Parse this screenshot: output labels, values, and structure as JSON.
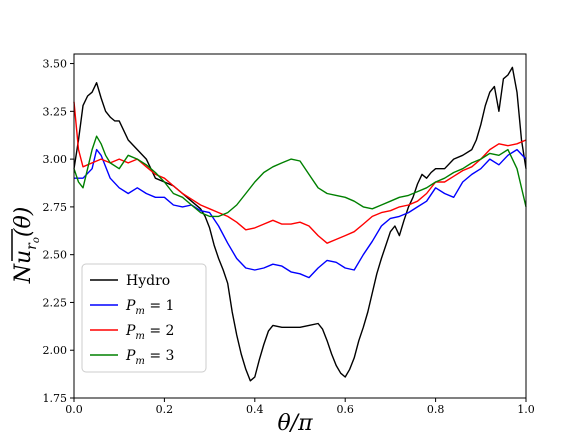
{
  "chart_data": {
    "type": "line",
    "xlabel": "θ/π",
    "ylabel": "Nu_{r_o}(θ)",
    "xlim": [
      0,
      1
    ],
    "ylim": [
      1.75,
      3.55
    ],
    "xticks": [
      0.0,
      0.2,
      0.4,
      0.6,
      0.8,
      1.0
    ],
    "xtick_labels": [
      "0.0",
      "0.2",
      "0.4",
      "0.6",
      "0.8",
      "1.0"
    ],
    "yticks": [
      1.75,
      2.0,
      2.25,
      2.5,
      2.75,
      3.0,
      3.25,
      3.5
    ],
    "ytick_labels": [
      "1.75",
      "2.00",
      "2.25",
      "2.50",
      "2.75",
      "3.00",
      "3.25",
      "3.50"
    ],
    "grid": false,
    "legend_position": "lower-left",
    "series": [
      {
        "name": "Hydro",
        "color": "#000000",
        "points": [
          [
            0.0,
            2.95
          ],
          [
            0.01,
            3.1
          ],
          [
            0.02,
            3.28
          ],
          [
            0.03,
            3.33
          ],
          [
            0.04,
            3.35
          ],
          [
            0.05,
            3.4
          ],
          [
            0.06,
            3.32
          ],
          [
            0.07,
            3.25
          ],
          [
            0.08,
            3.22
          ],
          [
            0.09,
            3.2
          ],
          [
            0.1,
            3.2
          ],
          [
            0.12,
            3.1
          ],
          [
            0.14,
            3.05
          ],
          [
            0.16,
            3.0
          ],
          [
            0.18,
            2.9
          ],
          [
            0.2,
            2.88
          ],
          [
            0.22,
            2.86
          ],
          [
            0.24,
            2.82
          ],
          [
            0.26,
            2.78
          ],
          [
            0.28,
            2.74
          ],
          [
            0.29,
            2.7
          ],
          [
            0.3,
            2.64
          ],
          [
            0.31,
            2.55
          ],
          [
            0.32,
            2.48
          ],
          [
            0.33,
            2.42
          ],
          [
            0.34,
            2.35
          ],
          [
            0.35,
            2.2
          ],
          [
            0.36,
            2.08
          ],
          [
            0.37,
            1.98
          ],
          [
            0.38,
            1.9
          ],
          [
            0.39,
            1.84
          ],
          [
            0.4,
            1.86
          ],
          [
            0.41,
            1.95
          ],
          [
            0.42,
            2.03
          ],
          [
            0.43,
            2.1
          ],
          [
            0.44,
            2.13
          ],
          [
            0.46,
            2.12
          ],
          [
            0.48,
            2.12
          ],
          [
            0.5,
            2.12
          ],
          [
            0.52,
            2.13
          ],
          [
            0.54,
            2.14
          ],
          [
            0.55,
            2.11
          ],
          [
            0.56,
            2.05
          ],
          [
            0.57,
            1.98
          ],
          [
            0.58,
            1.92
          ],
          [
            0.59,
            1.88
          ],
          [
            0.6,
            1.86
          ],
          [
            0.61,
            1.9
          ],
          [
            0.62,
            1.96
          ],
          [
            0.63,
            2.05
          ],
          [
            0.64,
            2.12
          ],
          [
            0.65,
            2.2
          ],
          [
            0.66,
            2.3
          ],
          [
            0.67,
            2.4
          ],
          [
            0.68,
            2.48
          ],
          [
            0.69,
            2.55
          ],
          [
            0.7,
            2.62
          ],
          [
            0.71,
            2.65
          ],
          [
            0.72,
            2.6
          ],
          [
            0.73,
            2.68
          ],
          [
            0.74,
            2.75
          ],
          [
            0.75,
            2.8
          ],
          [
            0.76,
            2.87
          ],
          [
            0.77,
            2.92
          ],
          [
            0.78,
            2.9
          ],
          [
            0.79,
            2.93
          ],
          [
            0.8,
            2.95
          ],
          [
            0.82,
            2.95
          ],
          [
            0.84,
            3.0
          ],
          [
            0.86,
            3.02
          ],
          [
            0.88,
            3.05
          ],
          [
            0.89,
            3.1
          ],
          [
            0.9,
            3.18
          ],
          [
            0.91,
            3.28
          ],
          [
            0.92,
            3.35
          ],
          [
            0.93,
            3.38
          ],
          [
            0.94,
            3.25
          ],
          [
            0.95,
            3.42
          ],
          [
            0.96,
            3.44
          ],
          [
            0.97,
            3.48
          ],
          [
            0.98,
            3.35
          ],
          [
            0.99,
            3.1
          ],
          [
            1.0,
            2.95
          ]
        ]
      },
      {
        "name": "P_m = 1",
        "color": "#0000ff",
        "points": [
          [
            0.0,
            2.9
          ],
          [
            0.02,
            2.9
          ],
          [
            0.04,
            2.95
          ],
          [
            0.05,
            3.05
          ],
          [
            0.06,
            3.02
          ],
          [
            0.08,
            2.9
          ],
          [
            0.1,
            2.85
          ],
          [
            0.12,
            2.82
          ],
          [
            0.14,
            2.85
          ],
          [
            0.16,
            2.82
          ],
          [
            0.18,
            2.8
          ],
          [
            0.2,
            2.8
          ],
          [
            0.22,
            2.76
          ],
          [
            0.24,
            2.75
          ],
          [
            0.26,
            2.76
          ],
          [
            0.28,
            2.73
          ],
          [
            0.3,
            2.72
          ],
          [
            0.32,
            2.65
          ],
          [
            0.34,
            2.56
          ],
          [
            0.36,
            2.48
          ],
          [
            0.38,
            2.43
          ],
          [
            0.4,
            2.42
          ],
          [
            0.42,
            2.43
          ],
          [
            0.44,
            2.45
          ],
          [
            0.46,
            2.44
          ],
          [
            0.48,
            2.41
          ],
          [
            0.5,
            2.4
          ],
          [
            0.52,
            2.38
          ],
          [
            0.54,
            2.43
          ],
          [
            0.56,
            2.47
          ],
          [
            0.58,
            2.46
          ],
          [
            0.6,
            2.43
          ],
          [
            0.62,
            2.42
          ],
          [
            0.64,
            2.5
          ],
          [
            0.66,
            2.57
          ],
          [
            0.68,
            2.65
          ],
          [
            0.7,
            2.69
          ],
          [
            0.72,
            2.7
          ],
          [
            0.74,
            2.72
          ],
          [
            0.76,
            2.75
          ],
          [
            0.78,
            2.78
          ],
          [
            0.8,
            2.85
          ],
          [
            0.82,
            2.82
          ],
          [
            0.84,
            2.8
          ],
          [
            0.86,
            2.88
          ],
          [
            0.88,
            2.92
          ],
          [
            0.9,
            2.95
          ],
          [
            0.92,
            3.0
          ],
          [
            0.94,
            2.97
          ],
          [
            0.96,
            3.02
          ],
          [
            0.98,
            3.05
          ],
          [
            1.0,
            3.0
          ]
        ]
      },
      {
        "name": "P_m = 2",
        "color": "#ff0000",
        "points": [
          [
            0.0,
            3.3
          ],
          [
            0.01,
            3.05
          ],
          [
            0.02,
            2.96
          ],
          [
            0.04,
            2.98
          ],
          [
            0.06,
            3.0
          ],
          [
            0.08,
            2.98
          ],
          [
            0.1,
            3.0
          ],
          [
            0.12,
            2.98
          ],
          [
            0.14,
            3.0
          ],
          [
            0.16,
            2.96
          ],
          [
            0.18,
            2.92
          ],
          [
            0.2,
            2.9
          ],
          [
            0.22,
            2.86
          ],
          [
            0.24,
            2.82
          ],
          [
            0.26,
            2.79
          ],
          [
            0.28,
            2.76
          ],
          [
            0.3,
            2.74
          ],
          [
            0.32,
            2.72
          ],
          [
            0.34,
            2.7
          ],
          [
            0.36,
            2.67
          ],
          [
            0.38,
            2.63
          ],
          [
            0.4,
            2.64
          ],
          [
            0.42,
            2.66
          ],
          [
            0.44,
            2.68
          ],
          [
            0.46,
            2.66
          ],
          [
            0.48,
            2.66
          ],
          [
            0.5,
            2.67
          ],
          [
            0.52,
            2.65
          ],
          [
            0.54,
            2.6
          ],
          [
            0.56,
            2.56
          ],
          [
            0.58,
            2.58
          ],
          [
            0.6,
            2.6
          ],
          [
            0.62,
            2.62
          ],
          [
            0.64,
            2.66
          ],
          [
            0.66,
            2.7
          ],
          [
            0.68,
            2.72
          ],
          [
            0.7,
            2.73
          ],
          [
            0.72,
            2.75
          ],
          [
            0.74,
            2.76
          ],
          [
            0.76,
            2.78
          ],
          [
            0.78,
            2.82
          ],
          [
            0.8,
            2.88
          ],
          [
            0.82,
            2.88
          ],
          [
            0.84,
            2.91
          ],
          [
            0.86,
            2.94
          ],
          [
            0.88,
            2.96
          ],
          [
            0.9,
            3.0
          ],
          [
            0.92,
            3.05
          ],
          [
            0.94,
            3.08
          ],
          [
            0.96,
            3.07
          ],
          [
            0.98,
            3.08
          ],
          [
            1.0,
            3.1
          ]
        ]
      },
      {
        "name": "P_m = 3",
        "color": "#008000",
        "points": [
          [
            0.0,
            2.95
          ],
          [
            0.01,
            2.88
          ],
          [
            0.02,
            2.85
          ],
          [
            0.03,
            2.95
          ],
          [
            0.04,
            3.05
          ],
          [
            0.05,
            3.12
          ],
          [
            0.06,
            3.08
          ],
          [
            0.07,
            3.02
          ],
          [
            0.08,
            2.98
          ],
          [
            0.1,
            2.95
          ],
          [
            0.12,
            3.02
          ],
          [
            0.14,
            3.0
          ],
          [
            0.16,
            2.97
          ],
          [
            0.18,
            2.93
          ],
          [
            0.2,
            2.88
          ],
          [
            0.22,
            2.82
          ],
          [
            0.24,
            2.8
          ],
          [
            0.26,
            2.76
          ],
          [
            0.28,
            2.72
          ],
          [
            0.3,
            2.7
          ],
          [
            0.32,
            2.7
          ],
          [
            0.34,
            2.72
          ],
          [
            0.36,
            2.76
          ],
          [
            0.38,
            2.82
          ],
          [
            0.4,
            2.88
          ],
          [
            0.42,
            2.93
          ],
          [
            0.44,
            2.96
          ],
          [
            0.46,
            2.98
          ],
          [
            0.48,
            3.0
          ],
          [
            0.5,
            2.99
          ],
          [
            0.52,
            2.92
          ],
          [
            0.54,
            2.85
          ],
          [
            0.56,
            2.82
          ],
          [
            0.58,
            2.81
          ],
          [
            0.6,
            2.8
          ],
          [
            0.62,
            2.78
          ],
          [
            0.64,
            2.75
          ],
          [
            0.66,
            2.74
          ],
          [
            0.68,
            2.76
          ],
          [
            0.7,
            2.78
          ],
          [
            0.72,
            2.8
          ],
          [
            0.74,
            2.81
          ],
          [
            0.76,
            2.83
          ],
          [
            0.78,
            2.85
          ],
          [
            0.8,
            2.88
          ],
          [
            0.82,
            2.9
          ],
          [
            0.84,
            2.93
          ],
          [
            0.86,
            2.95
          ],
          [
            0.88,
            2.98
          ],
          [
            0.9,
            3.0
          ],
          [
            0.92,
            3.03
          ],
          [
            0.94,
            3.02
          ],
          [
            0.96,
            3.05
          ],
          [
            0.98,
            2.95
          ],
          [
            1.0,
            2.75
          ]
        ]
      }
    ]
  }
}
